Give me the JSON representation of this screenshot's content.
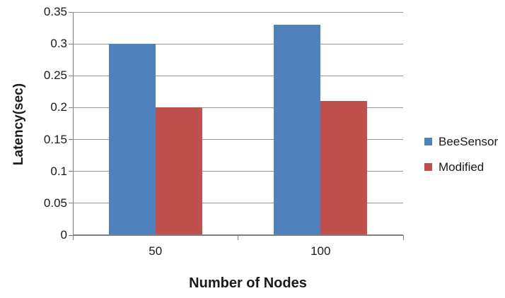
{
  "chart_data": {
    "type": "bar",
    "title": "",
    "xlabel": "Number of Nodes",
    "ylabel": "Latency(sec)",
    "categories": [
      "50",
      "100"
    ],
    "series": [
      {
        "name": "BeeSensor",
        "color": "#4F81BD",
        "values": [
          0.3,
          0.33
        ]
      },
      {
        "name": "Modified",
        "color": "#C0504D",
        "values": [
          0.2,
          0.21
        ]
      }
    ],
    "ylim": [
      0,
      0.35
    ],
    "yticks": [
      0,
      0.05,
      0.1,
      0.15,
      0.2,
      0.25,
      0.3,
      0.35
    ],
    "ytick_labels": [
      "0",
      "0.05",
      "0.1",
      "0.15",
      "0.2",
      "0.25",
      "0.3",
      "0.35"
    ],
    "grid": "horizontal",
    "legend_position": "right"
  },
  "colors": {
    "gridline": "#949494",
    "axis": "#7f7f7f",
    "text": "#1a1a1a",
    "background": "#ffffff"
  }
}
